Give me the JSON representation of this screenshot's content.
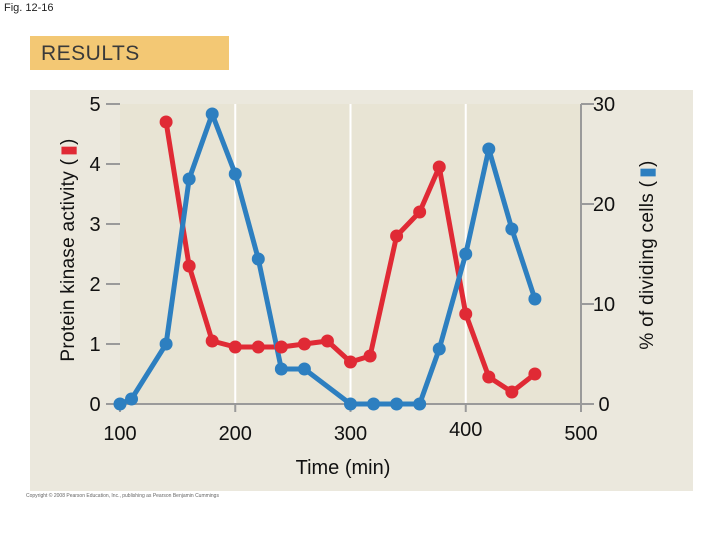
{
  "figure_label": "Fig. 12-16",
  "banner": "RESULTS",
  "copyright": "Copyright © 2008 Pearson Education, Inc., publishing as Pearson Benjamin Cummings",
  "colors": {
    "plot_bg": "#e8e4d4",
    "panel_bg": "#ebe8dd",
    "banner": "#f3c874",
    "kinase": "#e02a35",
    "dividing": "#2d7fc0"
  },
  "chart_data": {
    "type": "line",
    "xlabel": "Time (min)",
    "ylabel_left": "Protein kinase activity (",
    "ylabel_left_close": ")",
    "ylabel_right": "% of dividing cells (",
    "ylabel_right_close": ")",
    "x_ticks": [
      "100",
      "200",
      "300",
      "400",
      "500"
    ],
    "x_tick_values": [
      100,
      200,
      300,
      400,
      500
    ],
    "y_left_ticks": [
      "0",
      "1",
      "2",
      "3",
      "4",
      "5"
    ],
    "y_left_tick_values": [
      0,
      1,
      2,
      3,
      4,
      5
    ],
    "y_right_ticks": [
      "0",
      "10",
      "20",
      "30"
    ],
    "y_right_tick_values": [
      0,
      10,
      20,
      30
    ],
    "xlim": [
      100,
      500
    ],
    "ylim_left": [
      0,
      5
    ],
    "ylim_right": [
      0,
      30
    ],
    "grid": "vertical lines at x ticks",
    "series": [
      {
        "key": "kinase",
        "axis": "left",
        "x": [
          140,
          160,
          180,
          200,
          220,
          240,
          260,
          280,
          300,
          317,
          340,
          360,
          377,
          400,
          420,
          440,
          460
        ],
        "y": [
          4.7,
          2.3,
          1.05,
          0.95,
          0.95,
          0.95,
          1.0,
          1.05,
          0.7,
          0.8,
          2.8,
          3.2,
          3.95,
          1.5,
          0.45,
          0.2,
          0.5
        ]
      },
      {
        "key": "dividing",
        "axis": "right",
        "x": [
          100,
          110,
          140,
          160,
          180,
          200,
          220,
          240,
          260,
          300,
          320,
          340,
          360,
          377,
          400,
          420,
          440,
          460
        ],
        "y": [
          0,
          0.5,
          6,
          22.5,
          29,
          23,
          14.5,
          3.5,
          3.5,
          0,
          0,
          0,
          0,
          5.5,
          15,
          25.5,
          17.5,
          10.5
        ]
      }
    ]
  }
}
